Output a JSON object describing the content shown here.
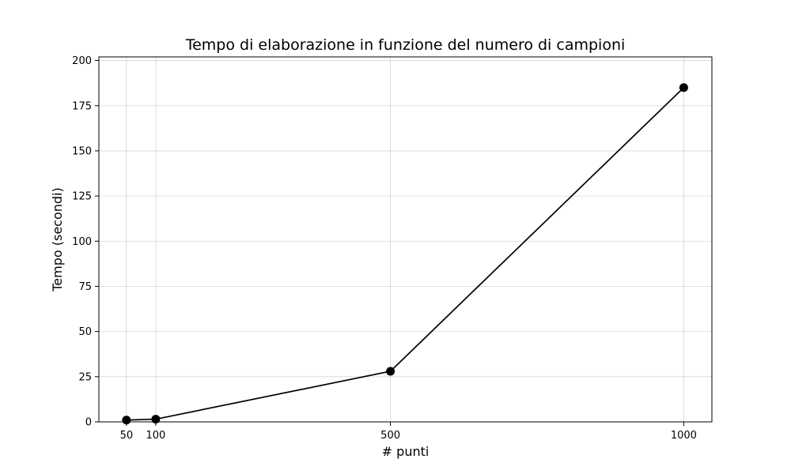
{
  "chart_data": {
    "type": "line",
    "title": "Tempo di elaborazione in funzione del numero di campioni",
    "xlabel": "# punti",
    "ylabel": "Tempo (secondi)",
    "x": [
      50,
      100,
      500,
      1000
    ],
    "x_tick_labels": [
      "50",
      "100",
      "500",
      "1000"
    ],
    "y_ticks": [
      0,
      25,
      50,
      75,
      100,
      125,
      150,
      175,
      200
    ],
    "y_tick_labels": [
      "0",
      "25",
      "50",
      "75",
      "100",
      "125",
      "150",
      "175",
      "200"
    ],
    "xlim": [
      3,
      1048
    ],
    "ylim": [
      0,
      202
    ],
    "grid": true,
    "series": [
      {
        "values": [
          1.0,
          1.5,
          28,
          185
        ],
        "color": "#000000",
        "marker": "circle"
      }
    ]
  }
}
